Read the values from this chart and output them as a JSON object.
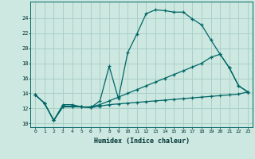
{
  "xlabel": "Humidex (Indice chaleur)",
  "bg_color": "#cce8e0",
  "grid_color": "#aad0c8",
  "line_color": "#006666",
  "line1_x": [
    0,
    1,
    2,
    3,
    4,
    5,
    6,
    7,
    8,
    9,
    10,
    11,
    12,
    13,
    14,
    15,
    16,
    17,
    18,
    19,
    20,
    21,
    22,
    23
  ],
  "line1_y": [
    13.8,
    12.7,
    10.4,
    12.5,
    12.5,
    12.2,
    12.1,
    13.0,
    17.6,
    13.3,
    19.4,
    21.9,
    24.6,
    25.1,
    25.0,
    24.8,
    24.8,
    23.9,
    23.1,
    21.1,
    19.2,
    17.4,
    15.0,
    14.2
  ],
  "line2_x": [
    0,
    1,
    2,
    3,
    4,
    5,
    6,
    7,
    8,
    9,
    10,
    11,
    12,
    13,
    14,
    15,
    16,
    17,
    18,
    19,
    20,
    21,
    22,
    23
  ],
  "line2_y": [
    13.8,
    12.7,
    10.4,
    12.3,
    12.3,
    12.2,
    12.2,
    12.5,
    13.0,
    13.5,
    14.0,
    14.5,
    15.0,
    15.5,
    16.0,
    16.5,
    17.0,
    17.5,
    18.0,
    18.8,
    19.2,
    17.4,
    15.0,
    14.2
  ],
  "line3_x": [
    0,
    1,
    2,
    3,
    4,
    5,
    6,
    7,
    8,
    9,
    10,
    11,
    12,
    13,
    14,
    15,
    16,
    17,
    18,
    19,
    20,
    21,
    22,
    23
  ],
  "line3_y": [
    13.8,
    12.7,
    10.4,
    12.2,
    12.2,
    12.2,
    12.1,
    12.3,
    12.5,
    12.6,
    12.7,
    12.8,
    12.9,
    13.0,
    13.1,
    13.2,
    13.3,
    13.4,
    13.5,
    13.6,
    13.7,
    13.8,
    13.9,
    14.2
  ],
  "ylim": [
    9.5,
    26.2
  ],
  "xlim": [
    -0.5,
    23.5
  ],
  "yticks": [
    10,
    12,
    14,
    16,
    18,
    20,
    22,
    24
  ],
  "xticks": [
    0,
    1,
    2,
    3,
    4,
    5,
    6,
    7,
    8,
    9,
    10,
    11,
    12,
    13,
    14,
    15,
    16,
    17,
    18,
    19,
    20,
    21,
    22,
    23
  ]
}
